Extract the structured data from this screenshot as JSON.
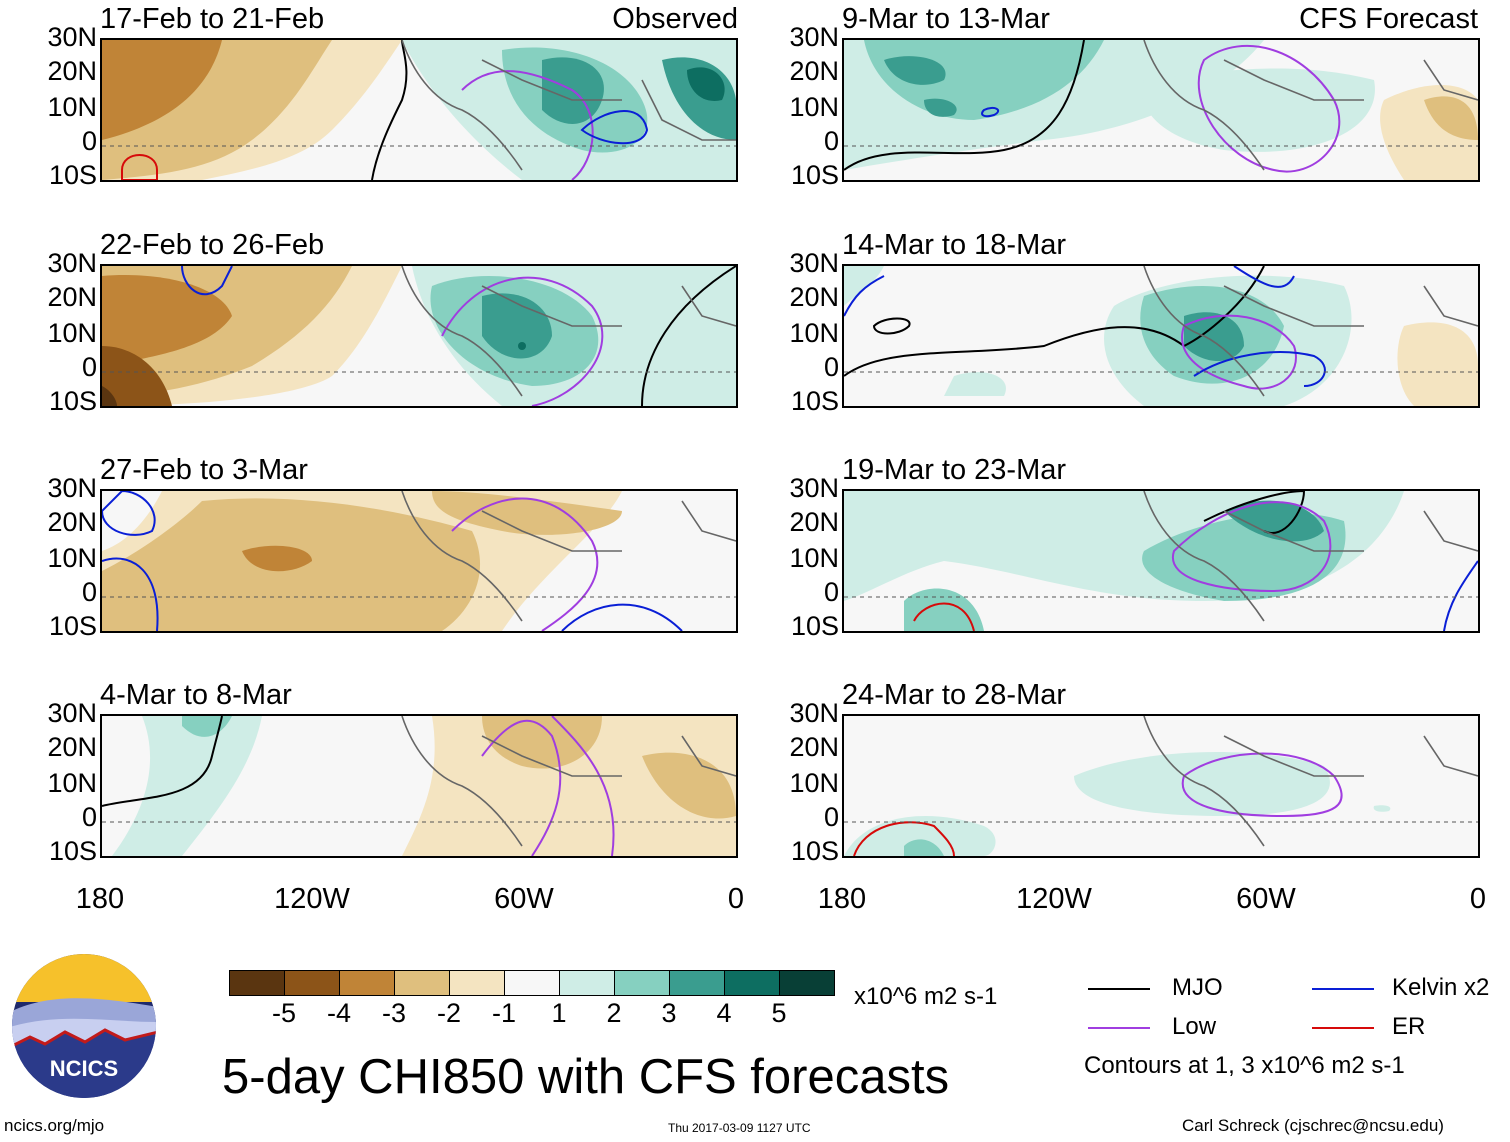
{
  "columns": {
    "left_tag": "Observed",
    "right_tag": "CFS Forecast"
  },
  "panels_left": [
    {
      "title": "17-Feb to 21-Feb"
    },
    {
      "title": "22-Feb to 26-Feb"
    },
    {
      "title": "27-Feb to 3-Mar"
    },
    {
      "title": "4-Mar to 8-Mar"
    }
  ],
  "panels_right": [
    {
      "title": "9-Mar to 13-Mar"
    },
    {
      "title": "14-Mar to 18-Mar"
    },
    {
      "title": "19-Mar to 23-Mar"
    },
    {
      "title": "24-Mar to 28-Mar"
    }
  ],
  "lat_labels": [
    "30N",
    "20N",
    "10N",
    "0",
    "10S"
  ],
  "lon_labels": [
    "180",
    "120W",
    "60W",
    "0"
  ],
  "colorbar": {
    "colors": [
      "#5a3510",
      "#8c5418",
      "#c08437",
      "#dfbf7e",
      "#f4e4c1",
      "#f7f7f7",
      "#cfede6",
      "#86d0c0",
      "#3a9d8f",
      "#0d6e61",
      "#083f36"
    ],
    "labels": [
      "-5",
      "-4",
      "-3",
      "-2",
      "-1",
      "1",
      "2",
      "3",
      "4",
      "5"
    ],
    "units": "x10^6 m2 s-1"
  },
  "legend": {
    "items": [
      {
        "label": "MJO",
        "color": "#000000"
      },
      {
        "label": "Kelvin x2",
        "color": "#0a1fd6"
      },
      {
        "label": "Low",
        "color": "#a03de0"
      },
      {
        "label": "ER",
        "color": "#d60a0a"
      }
    ],
    "note": "Contours at 1, 3 x10^6 m2 s-1"
  },
  "footer": {
    "title": "5-day CHI850 with CFS forecasts",
    "url": "ncics.org/mjo",
    "timestamp": "Thu 2017-03-09 1127 UTC",
    "author": "Carl Schreck (cjschrec@ncsu.edu)",
    "logo_text": "NCICS"
  }
}
